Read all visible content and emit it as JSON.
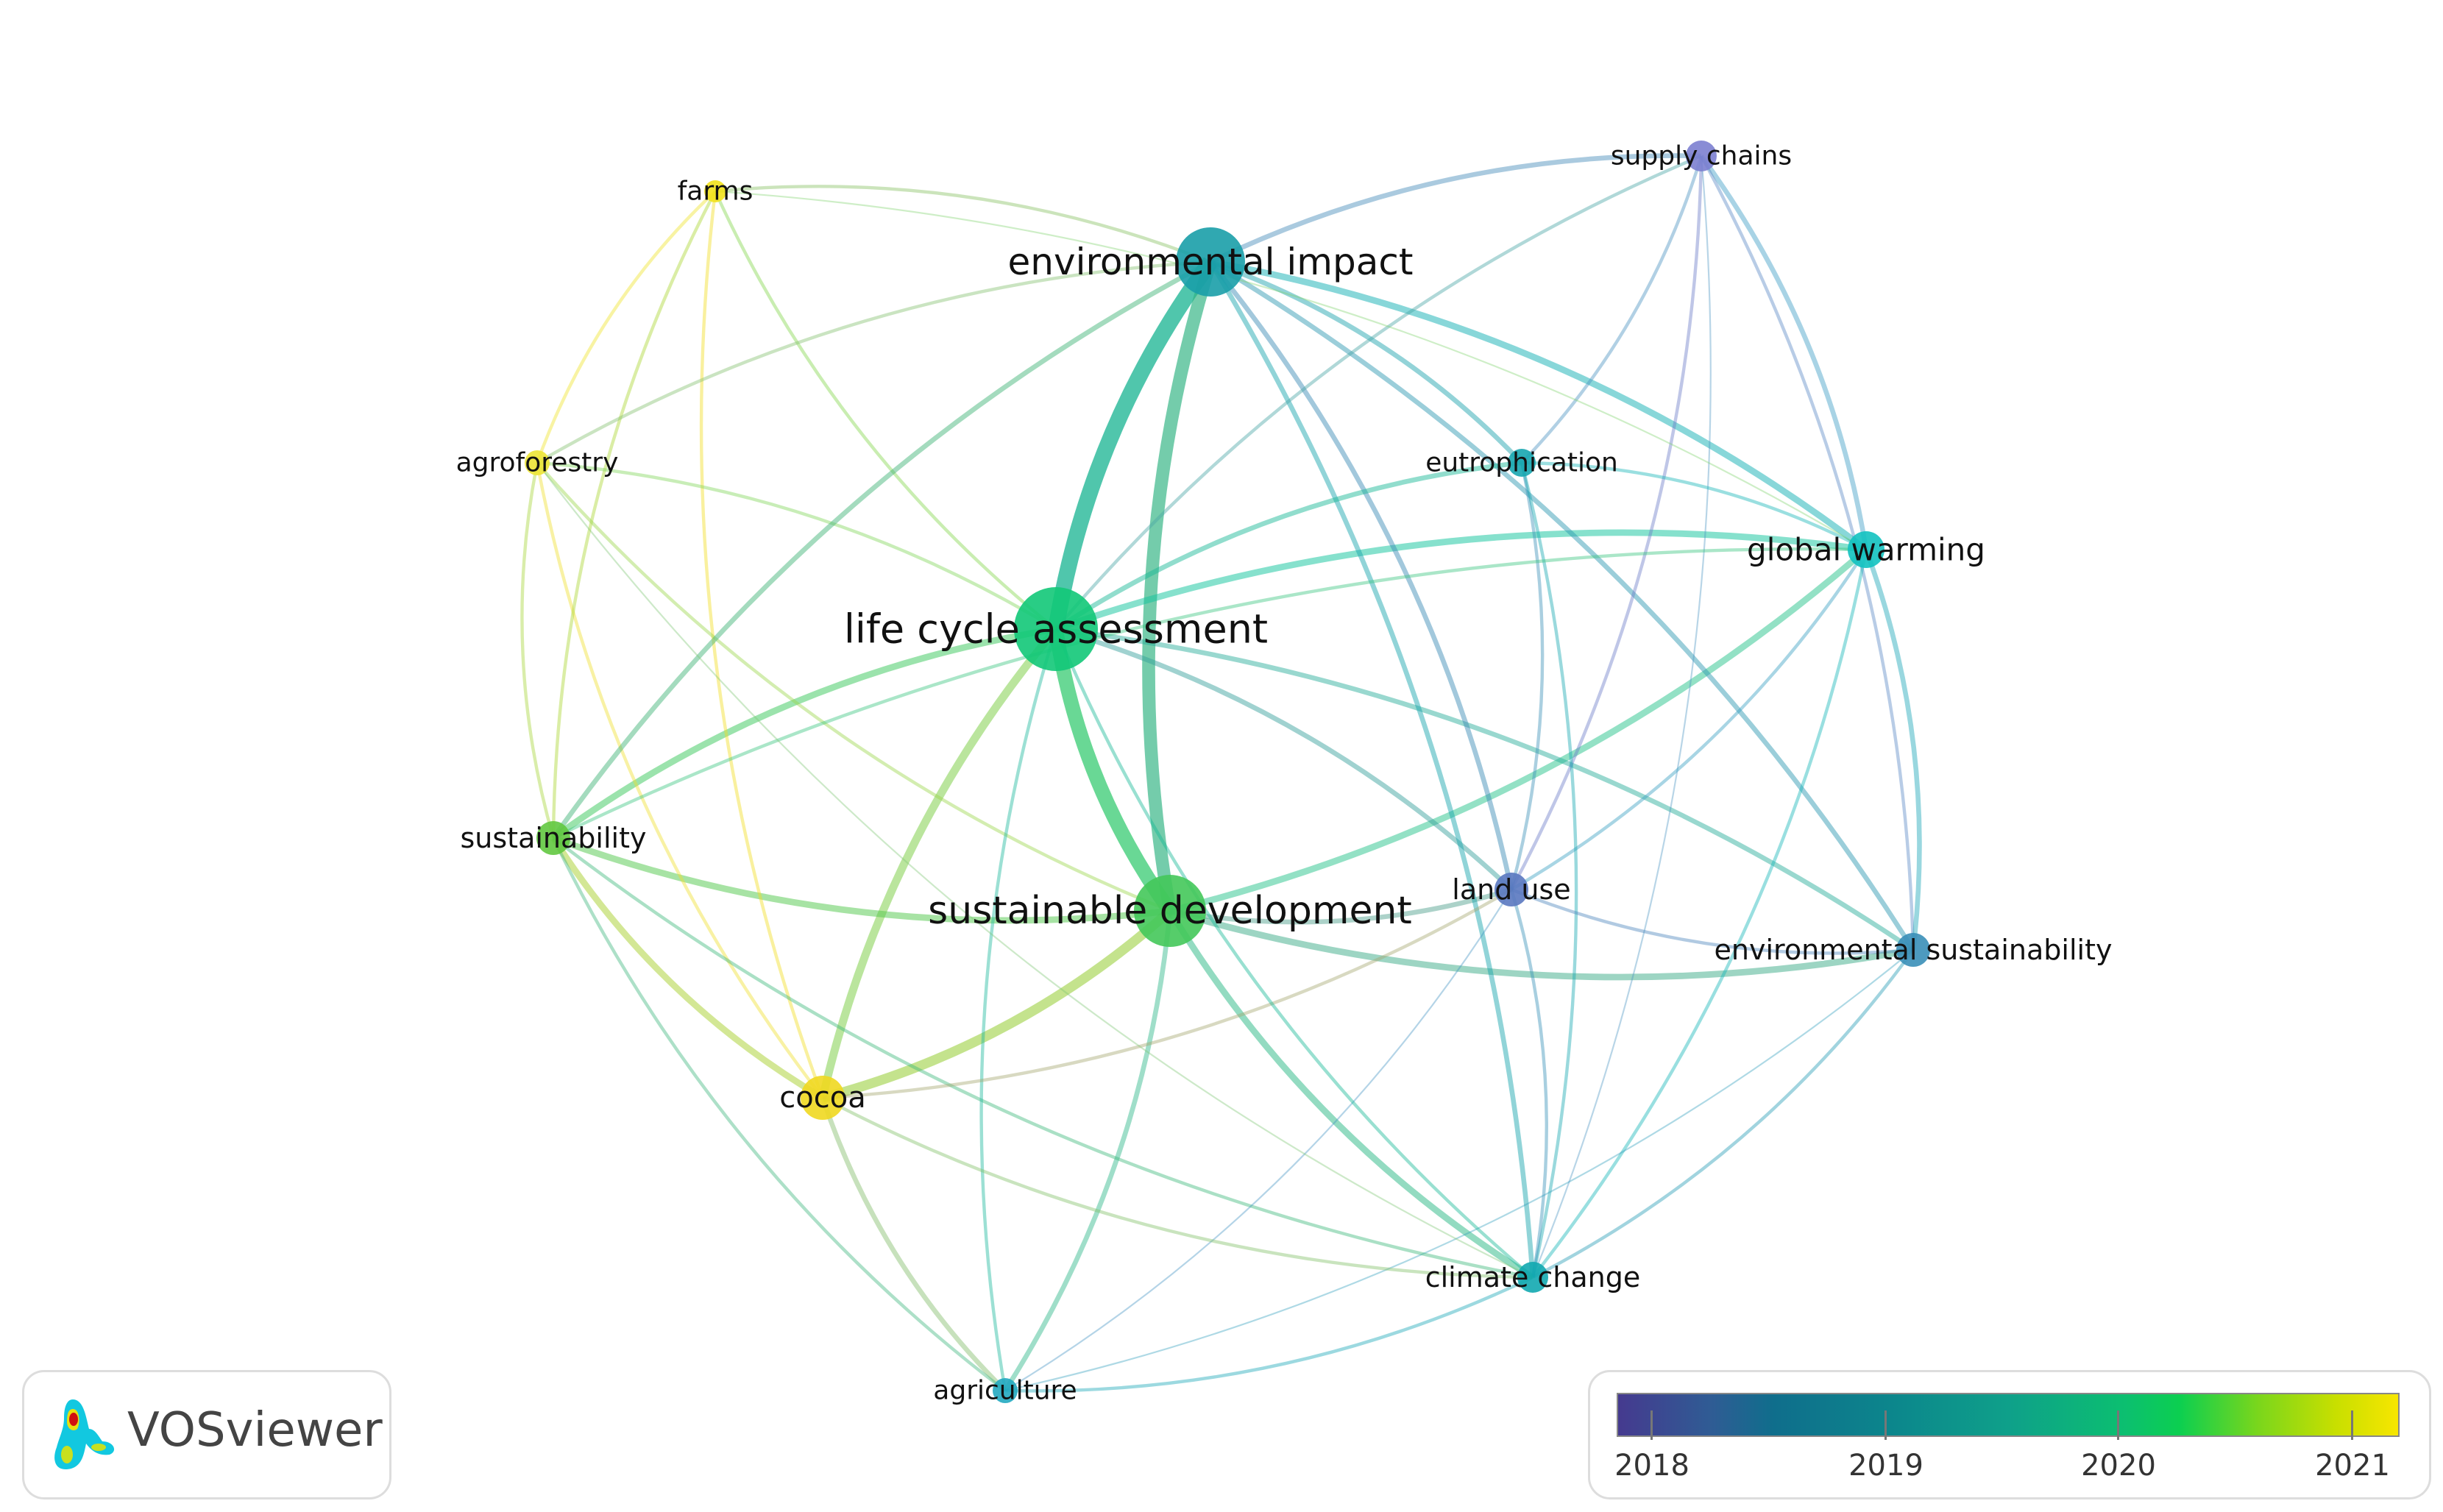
{
  "nodes": [
    {
      "id": "supply_chains",
      "label": "supply chains",
      "color": "#7c80d0"
    },
    {
      "id": "environmental_impact",
      "label": "environmental impact",
      "color": "#1a9ea8"
    },
    {
      "id": "farms",
      "label": "farms",
      "color": "#f2e21c"
    },
    {
      "id": "agroforestry",
      "label": "agroforestry",
      "color": "#ece436"
    },
    {
      "id": "eutrophication",
      "label": "eutrophication",
      "color": "#17a6b0"
    },
    {
      "id": "global_warming",
      "label": "global warming",
      "color": "#12c2c0"
    },
    {
      "id": "life_cycle_assessment",
      "label": "life cycle assessment",
      "color": "#12c878"
    },
    {
      "id": "sustainability",
      "label": "sustainability",
      "color": "#62c840"
    },
    {
      "id": "sustainable_development",
      "label": "sustainable development",
      "color": "#44c85a"
    },
    {
      "id": "land_use",
      "label": "land use",
      "color": "#5a78c0"
    },
    {
      "id": "environmental_sustainability",
      "label": "environmental sustainability",
      "color": "#3a8fb8"
    },
    {
      "id": "cocoa",
      "label": "cocoa",
      "color": "#f0d820"
    },
    {
      "id": "climate_change",
      "label": "climate change",
      "color": "#12a8b0"
    },
    {
      "id": "agriculture",
      "label": "agriculture",
      "color": "#22a8c0"
    }
  ],
  "links": [
    [
      "environmental_impact",
      "life_cycle_assessment",
      10
    ],
    [
      "environmental_impact",
      "sustainable_development",
      8
    ],
    [
      "life_cycle_assessment",
      "sustainable_development",
      9
    ],
    [
      "life_cycle_assessment",
      "cocoa",
      5
    ],
    [
      "sustainable_development",
      "cocoa",
      6
    ],
    [
      "life_cycle_assessment",
      "sustainability",
      4
    ],
    [
      "sustainable_development",
      "sustainability",
      4
    ],
    [
      "life_cycle_assessment",
      "global_warming",
      4
    ],
    [
      "sustainable_development",
      "global_warming",
      4
    ],
    [
      "life_cycle_assessment",
      "environmental_sustainability",
      3
    ],
    [
      "sustainable_development",
      "environmental_sustainability",
      4
    ],
    [
      "sustainable_development",
      "land_use",
      3
    ],
    [
      "life_cycle_assessment",
      "land_use",
      3
    ],
    [
      "environmental_impact",
      "global_warming",
      4
    ],
    [
      "environmental_impact",
      "supply_chains",
      3
    ],
    [
      "environmental_impact",
      "eutrophication",
      3
    ],
    [
      "environmental_impact",
      "land_use",
      3
    ],
    [
      "environmental_impact",
      "environmental_sustainability",
      3
    ],
    [
      "environmental_impact",
      "climate_change",
      3
    ],
    [
      "life_cycle_assessment",
      "eutrophication",
      3
    ],
    [
      "sustainable_development",
      "climate_change",
      4
    ],
    [
      "sustainable_development",
      "agriculture",
      3
    ],
    [
      "cocoa",
      "sustainability",
      4
    ],
    [
      "cocoa",
      "agriculture",
      3
    ],
    [
      "cocoa",
      "agroforestry",
      2
    ],
    [
      "cocoa",
      "farms",
      2
    ],
    [
      "farms",
      "life_cycle_assessment",
      2
    ],
    [
      "farms",
      "agroforestry",
      2
    ],
    [
      "farms",
      "sustainability",
      2
    ],
    [
      "farms",
      "environmental_impact",
      2
    ],
    [
      "agroforestry",
      "sustainability",
      2
    ],
    [
      "agroforestry",
      "life_cycle_assessment",
      2
    ],
    [
      "agroforestry",
      "sustainable_development",
      2
    ],
    [
      "agroforestry",
      "environmental_impact",
      2
    ],
    [
      "supply_chains",
      "global_warming",
      3
    ],
    [
      "supply_chains",
      "eutrophication",
      2
    ],
    [
      "supply_chains",
      "land_use",
      2
    ],
    [
      "supply_chains",
      "life_cycle_assessment",
      2
    ],
    [
      "supply_chains",
      "environmental_sustainability",
      2
    ],
    [
      "supply_chains",
      "climate_change",
      1
    ],
    [
      "global_warming",
      "environmental_sustainability",
      3
    ],
    [
      "global_warming",
      "land_use",
      2
    ],
    [
      "global_warming",
      "eutrophication",
      2
    ],
    [
      "global_warming",
      "climate_change",
      2
    ],
    [
      "eutrophication",
      "land_use",
      2
    ],
    [
      "eutrophication",
      "climate_change",
      2
    ],
    [
      "land_use",
      "climate_change",
      2
    ],
    [
      "land_use",
      "environmental_sustainability",
      2
    ],
    [
      "environmental_sustainability",
      "climate_change",
      2
    ],
    [
      "environmental_sustainability",
      "agriculture",
      1
    ],
    [
      "climate_change",
      "agriculture",
      2
    ],
    [
      "climate_change",
      "sustainability",
      2
    ],
    [
      "agriculture",
      "sustainability",
      2
    ],
    [
      "agriculture",
      "life_cycle_assessment",
      2
    ],
    [
      "agriculture",
      "land_use",
      1
    ],
    [
      "cocoa",
      "climate_change",
      2
    ],
    [
      "cocoa",
      "land_use",
      2
    ],
    [
      "sustainability",
      "global_warming",
      2
    ],
    [
      "sustainability",
      "environmental_impact",
      3
    ],
    [
      "farms",
      "global_warming",
      1
    ],
    [
      "agroforestry",
      "climate_change",
      1
    ],
    [
      "life_cycle_assessment",
      "climate_change",
      2
    ]
  ],
  "logo": {
    "text": "VOSviewer"
  },
  "legend": {
    "ticks": [
      "2018",
      "2019",
      "2020",
      "2021"
    ],
    "colors": [
      "#453a8f",
      "#0c868c",
      "#0ccf50",
      "#f7e600"
    ]
  }
}
